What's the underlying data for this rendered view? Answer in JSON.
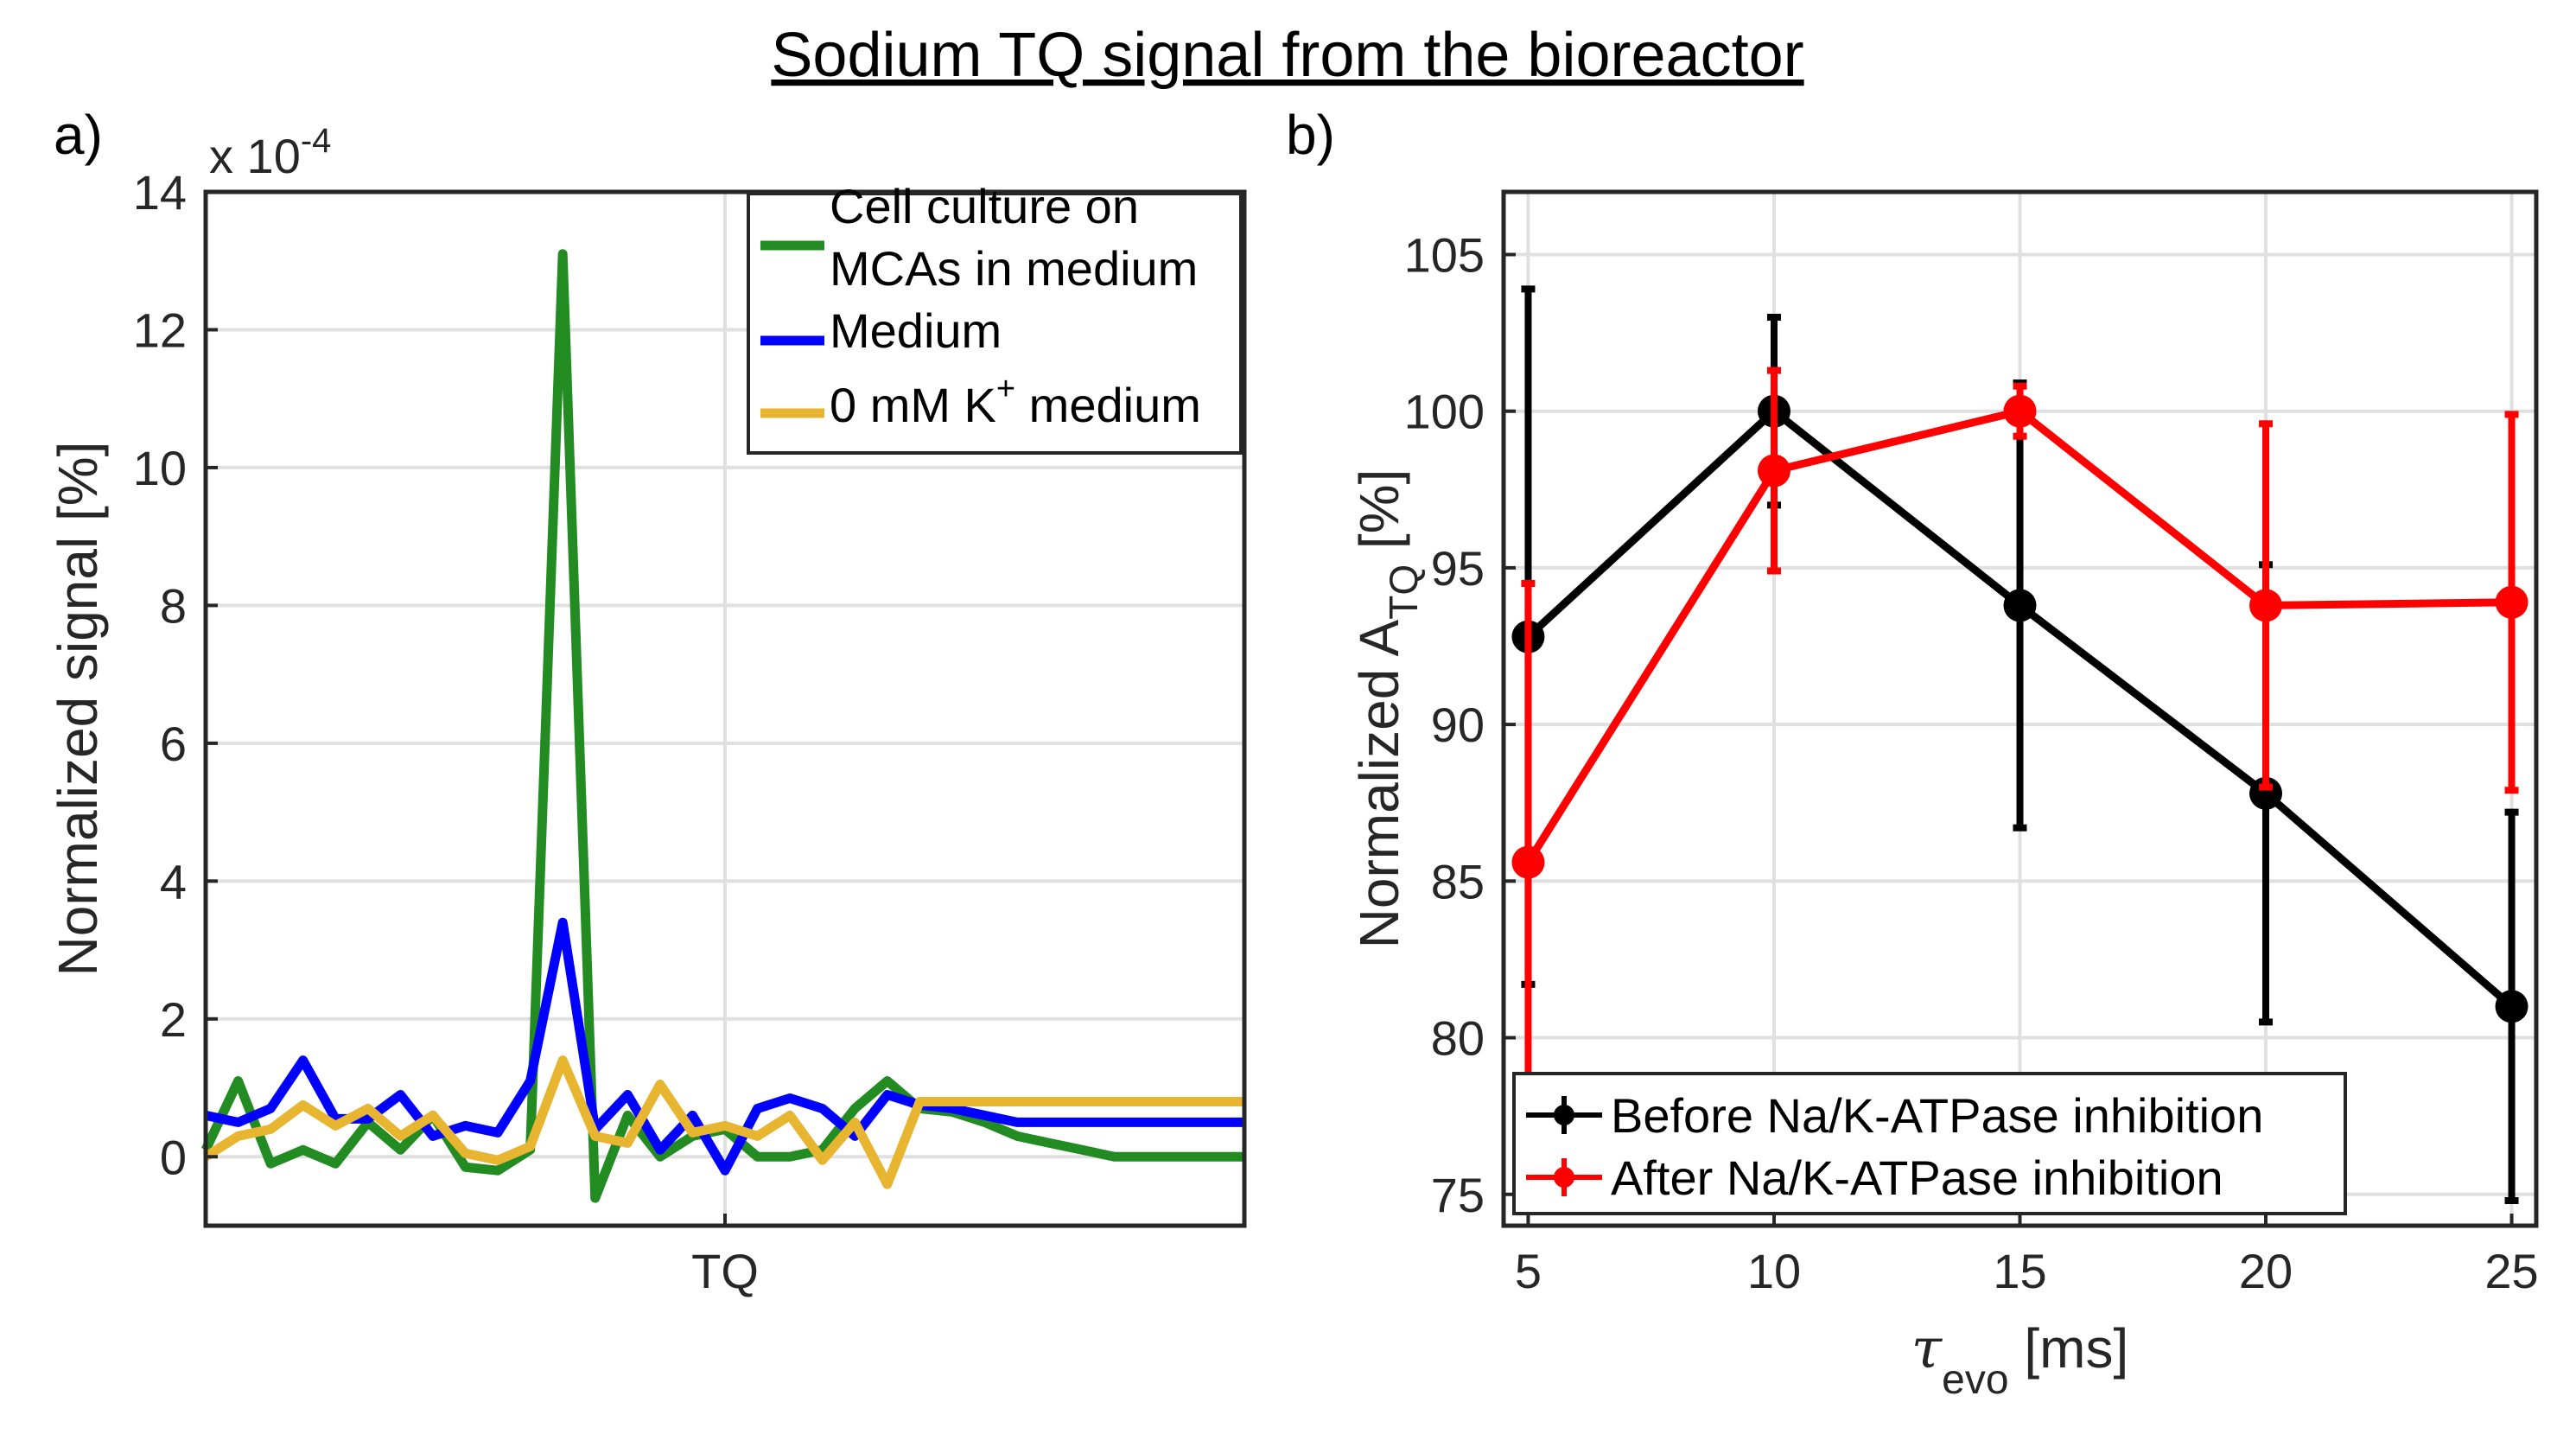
{
  "title": "Sodium TQ signal from the bioreactor",
  "chart_data": [
    {
      "panel": "a)",
      "type": "line",
      "ylabel": "Normalized signal [%]",
      "xlabel": "",
      "y_multiplier": "x 10",
      "y_exponent": "-4",
      "xlim": [
        -16,
        16
      ],
      "ylim": [
        -1,
        14
      ],
      "x_tick_label": "TQ",
      "x_tick_value": 0,
      "y_ticks": [
        0,
        2,
        4,
        6,
        8,
        10,
        12,
        14
      ],
      "grid": true,
      "legend_position": "top-right",
      "series": [
        {
          "name": "Cell culture on MCAs in medium",
          "legend": [
            "Cell culture on",
            "MCAs in medium"
          ],
          "color": "#228b22",
          "x": [
            -16,
            -15,
            -14,
            -13,
            -12,
            -11,
            -10,
            -9,
            -8,
            -7,
            -6,
            -5,
            -4,
            -3,
            -2,
            -1,
            0,
            1,
            2,
            3,
            4,
            5,
            6,
            7,
            8,
            9,
            10,
            11,
            12,
            13,
            14,
            15,
            16
          ],
          "y": [
            0.1,
            1.1,
            -0.1,
            0.1,
            -0.1,
            0.5,
            0.1,
            0.6,
            -0.15,
            -0.2,
            0.1,
            13.1,
            -0.6,
            0.6,
            0,
            0.3,
            0.4,
            0,
            0,
            0.1,
            0.7,
            1.1,
            0.7,
            0.65,
            0.5,
            0.3,
            0.2,
            0.1,
            0,
            0,
            0,
            0,
            0
          ]
        },
        {
          "name": "Medium",
          "legend": [
            "Medium"
          ],
          "color": "#0000ff",
          "x": [
            -16,
            -15,
            -14,
            -13,
            -12,
            -11,
            -10,
            -9,
            -8,
            -7,
            -6,
            -5,
            -4,
            -3,
            -2,
            -1,
            0,
            1,
            2,
            3,
            4,
            5,
            6,
            7,
            8,
            9,
            10,
            11,
            12,
            13,
            14,
            15,
            16
          ],
          "y": [
            0.6,
            0.5,
            0.7,
            1.4,
            0.55,
            0.55,
            0.9,
            0.3,
            0.45,
            0.35,
            1.1,
            3.4,
            0.4,
            0.9,
            0.1,
            0.6,
            -0.2,
            0.7,
            0.85,
            0.7,
            0.3,
            0.9,
            0.75,
            0.7,
            0.6,
            0.5,
            0.5,
            0.5,
            0.5,
            0.5,
            0.5,
            0.5,
            0.5
          ]
        },
        {
          "name": "0 mM K+ medium",
          "legend": [
            "0 mM K",
            "+",
            " medium"
          ],
          "color": "#e8b530",
          "x": [
            -16,
            -15,
            -14,
            -13,
            -12,
            -11,
            -10,
            -9,
            -8,
            -7,
            -6,
            -5,
            -4,
            -3,
            -2,
            -1,
            0,
            1,
            2,
            3,
            4,
            5,
            6,
            7,
            8,
            9,
            10,
            11,
            12,
            13,
            14,
            15,
            16
          ],
          "y": [
            0,
            0.3,
            0.4,
            0.75,
            0.45,
            0.7,
            0.3,
            0.6,
            0.05,
            -0.05,
            0.15,
            1.4,
            0.3,
            0.2,
            1.05,
            0.35,
            0.45,
            0.3,
            0.6,
            -0.05,
            0.5,
            -0.4,
            0.8,
            0.8,
            0.8,
            0.8,
            0.8,
            0.8,
            0.8,
            0.8,
            0.8,
            0.8,
            0.8
          ]
        }
      ]
    },
    {
      "panel": "b)",
      "type": "line",
      "ylabel_main": "Normalized A",
      "ylabel_sub": "TQ",
      "ylabel_tail": " [%]",
      "xlabel_symbol": "τ",
      "xlabel_sub": "evo",
      "xlabel_tail": " [ms]",
      "xlim": [
        4.5,
        25.5
      ],
      "ylim": [
        74,
        107
      ],
      "x_ticks": [
        5,
        10,
        15,
        20,
        25
      ],
      "y_ticks": [
        75,
        80,
        85,
        90,
        95,
        100,
        105
      ],
      "grid": true,
      "legend_position": "bottom-left",
      "series": [
        {
          "name": "Before Na/K-ATPase inhibition",
          "color": "#000000",
          "x": [
            5,
            10,
            15,
            20,
            25
          ],
          "y": [
            92.8,
            100,
            93.8,
            87.8,
            81
          ],
          "err": [
            11.1,
            3,
            7.1,
            7.3,
            6.2
          ]
        },
        {
          "name": "After Na/K-ATPase inhibition",
          "color": "#ff0000",
          "x": [
            5,
            10,
            15,
            20,
            25
          ],
          "y": [
            85.6,
            98.1,
            100,
            93.8,
            93.9
          ],
          "err": [
            8.9,
            3.2,
            0.8,
            5.8,
            6
          ]
        }
      ]
    }
  ]
}
